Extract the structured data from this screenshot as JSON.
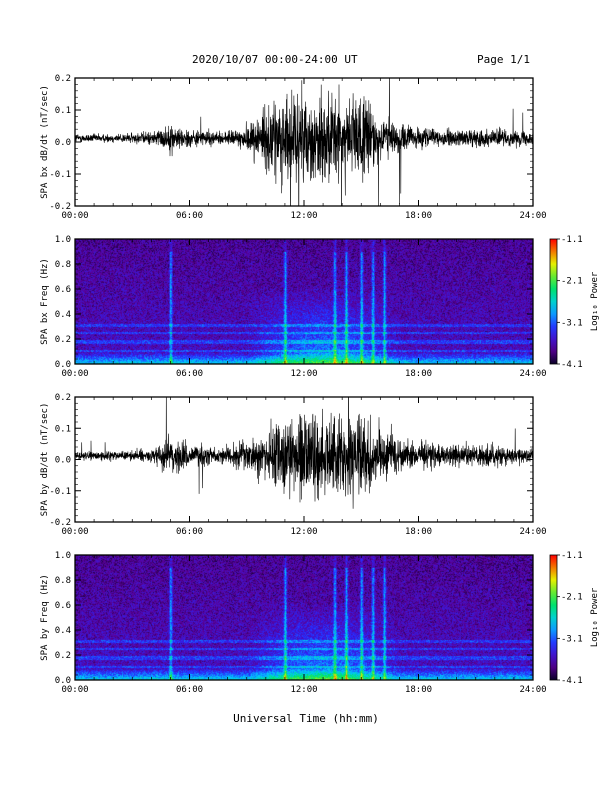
{
  "header": {
    "title": "2020/10/07  00:00-24:00 UT",
    "page": "Page 1/1"
  },
  "chart_data": [
    {
      "type": "line",
      "ylabel": "SPA bx dB/dt (nT/sec)",
      "ylim": [
        -0.2,
        0.2
      ],
      "yticks": [
        "-0.2",
        "-0.1",
        "0.0",
        "0.1",
        "0.2"
      ],
      "xlim": [
        "00:00",
        "24:00"
      ],
      "xticks": [
        "00:00",
        "06:00",
        "12:00",
        "18:00",
        "24:00"
      ],
      "series_color": "#000000",
      "envelope": {
        "hours": [
          0,
          2,
          4,
          5,
          6,
          8,
          9,
          10,
          11,
          12,
          13,
          14,
          15,
          16,
          17,
          18,
          20,
          22,
          24
        ],
        "amplitude": [
          0.02,
          0.02,
          0.03,
          0.06,
          0.04,
          0.03,
          0.06,
          0.15,
          0.2,
          0.2,
          0.2,
          0.2,
          0.2,
          0.12,
          0.07,
          0.05,
          0.04,
          0.04,
          0.03
        ]
      }
    },
    {
      "type": "heatmap",
      "ylabel": "SPA bx Freq (Hz)",
      "ylim": [
        0.0,
        1.0
      ],
      "yticks": [
        "0.0",
        "0.2",
        "0.4",
        "0.6",
        "0.8",
        "1.0"
      ],
      "xlim": [
        "00:00",
        "24:00"
      ],
      "xticks": [
        "00:00",
        "06:00",
        "12:00",
        "18:00",
        "24:00"
      ],
      "colorbar": {
        "label": "Log₁₀ Power",
        "ticks": [
          "-1.1",
          "-2.1",
          "-3.1",
          "-4.1"
        ],
        "min": -4.1,
        "max": -1.1
      },
      "activity_hours": [
        5.0,
        11.0,
        13.6,
        14.2,
        15.0,
        15.6,
        16.2
      ]
    },
    {
      "type": "line",
      "ylabel": "SPA by dB/dt (nT/sec)",
      "ylim": [
        -0.2,
        0.2
      ],
      "yticks": [
        "-0.2",
        "-0.1",
        "0.0",
        "0.1",
        "0.2"
      ],
      "xlim": [
        "00:00",
        "24:00"
      ],
      "xticks": [
        "00:00",
        "06:00",
        "12:00",
        "18:00",
        "24:00"
      ],
      "series_color": "#000000",
      "envelope": {
        "hours": [
          0,
          2,
          4,
          5,
          6,
          8,
          9,
          10,
          11,
          12,
          13,
          14,
          15,
          16,
          17,
          18,
          20,
          22,
          24
        ],
        "amplitude": [
          0.02,
          0.02,
          0.03,
          0.1,
          0.05,
          0.04,
          0.07,
          0.12,
          0.18,
          0.2,
          0.2,
          0.2,
          0.2,
          0.13,
          0.08,
          0.06,
          0.05,
          0.05,
          0.03
        ]
      }
    },
    {
      "type": "heatmap",
      "ylabel": "SPA by Freq (Hz)",
      "ylim": [
        0.0,
        1.0
      ],
      "yticks": [
        "0.0",
        "0.2",
        "0.4",
        "0.6",
        "0.8",
        "1.0"
      ],
      "xlim": [
        "00:00",
        "24:00"
      ],
      "xticks": [
        "00:00",
        "06:00",
        "12:00",
        "18:00",
        "24:00"
      ],
      "colorbar": {
        "label": "Log₁₀ Power",
        "ticks": [
          "-1.1",
          "-2.1",
          "-3.1",
          "-4.1"
        ],
        "min": -4.1,
        "max": -1.1
      },
      "activity_hours": [
        5.0,
        11.0,
        13.6,
        14.2,
        15.0,
        15.6,
        16.2
      ]
    }
  ],
  "xlabel": "Universal Time (hh:mm)"
}
